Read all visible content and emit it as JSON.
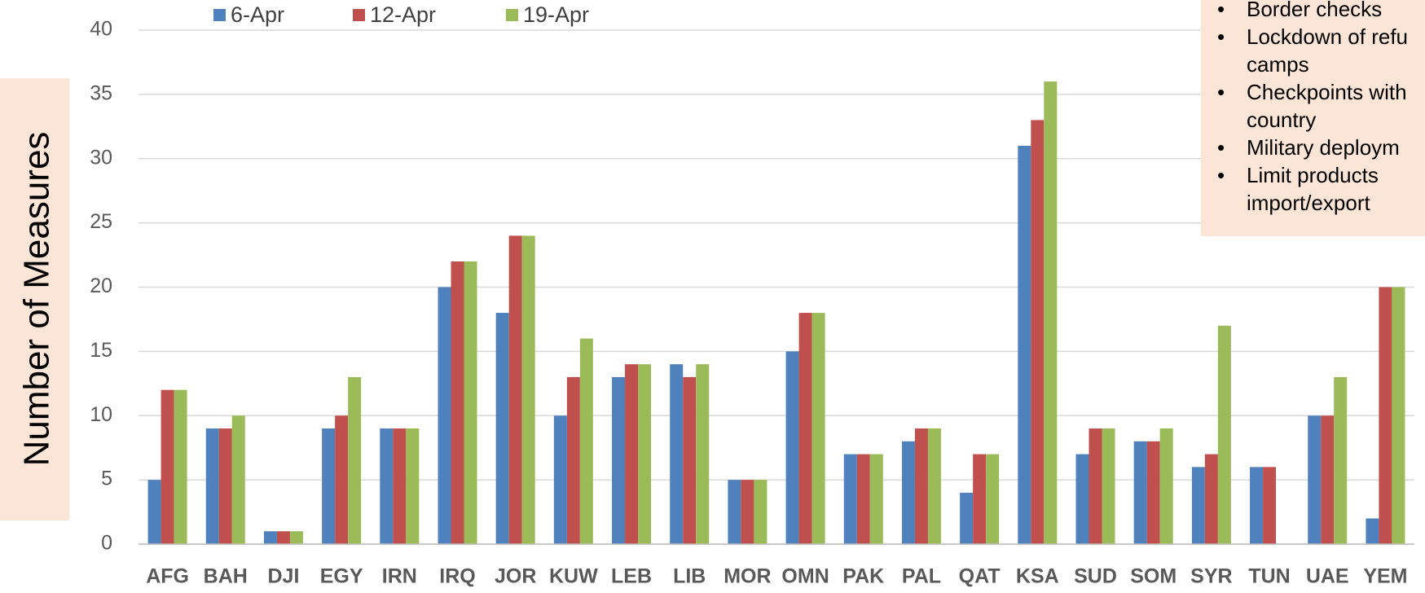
{
  "chart_data": {
    "type": "bar",
    "y_label": "Number of Measures",
    "categories": [
      "AFG",
      "BAH",
      "DJI",
      "EGY",
      "IRN",
      "IRQ",
      "JOR",
      "KUW",
      "LEB",
      "LIB",
      "MOR",
      "OMN",
      "PAK",
      "PAL",
      "QAT",
      "KSA",
      "SUD",
      "SOM",
      "SYR",
      "TUN",
      "UAE",
      "YEM"
    ],
    "series": [
      {
        "name": "6-Apr",
        "color": "#4f81bd",
        "values": [
          5,
          9,
          1,
          9,
          9,
          20,
          18,
          10,
          13,
          14,
          5,
          15,
          7,
          8,
          4,
          31,
          7,
          8,
          6,
          6,
          10,
          2
        ]
      },
      {
        "name": "12-Apr",
        "color": "#c0504d",
        "values": [
          12,
          9,
          1,
          10,
          9,
          22,
          24,
          13,
          14,
          13,
          5,
          18,
          7,
          9,
          7,
          33,
          9,
          8,
          7,
          6,
          10,
          20
        ]
      },
      {
        "name": "19-Apr",
        "color": "#9bbb59",
        "values": [
          12,
          10,
          1,
          13,
          9,
          22,
          24,
          16,
          14,
          14,
          5,
          18,
          7,
          9,
          7,
          36,
          9,
          9,
          17,
          null,
          13,
          20
        ]
      }
    ],
    "ylim": [
      0,
      40
    ],
    "yticks": [
      0,
      5,
      10,
      15,
      20,
      25,
      30,
      35,
      40
    ],
    "grid": true,
    "legend": "top-left"
  },
  "note": {
    "items": [
      [
        "Border checks"
      ],
      [
        "Lockdown of refu",
        "camps"
      ],
      [
        "Checkpoints with",
        "country"
      ],
      [
        "Military deploym"
      ],
      [
        "Limit products",
        "import/export"
      ]
    ]
  }
}
